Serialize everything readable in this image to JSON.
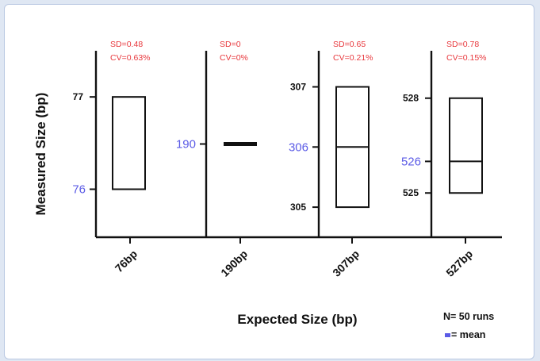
{
  "chart_data": {
    "type": "box",
    "title": "",
    "xlabel": "Expected Size (bp)",
    "ylabel": "Measured Size (bp)",
    "note": "N= 50 runs",
    "legend": [
      {
        "label": "= mean",
        "color": "#5b5be6"
      }
    ],
    "colors": {
      "stats": "#e8383d",
      "mean_label": "#5b5be6",
      "axis": "#111111"
    },
    "panels": [
      {
        "category": "76bp",
        "sd_label": "SD=0.48",
        "cv_label": "CV=0.63%",
        "ylim": [
          75.48,
          77.5
        ],
        "ticks": [
          {
            "value": 77,
            "label": "77",
            "style": "black"
          },
          {
            "value": 76,
            "label": "76",
            "style": "mean"
          }
        ],
        "box": {
          "low": 76.0,
          "high": 77.0,
          "mean": 76.0
        }
      },
      {
        "category": "190bp",
        "sd_label": "SD=0",
        "cv_label": "CV=0%",
        "ylim": [
          188,
          192
        ],
        "ticks": [
          {
            "value": 190,
            "label": "190",
            "style": "mean"
          }
        ],
        "box": {
          "low": 190.0,
          "high": 190.0,
          "mean": 190.0
        }
      },
      {
        "category": "307bp",
        "sd_label": "SD=0.65",
        "cv_label": "CV=0.21%",
        "ylim": [
          304.5,
          307.6
        ],
        "ticks": [
          {
            "value": 307,
            "label": "307",
            "style": "black"
          },
          {
            "value": 306,
            "label": "306",
            "style": "mean"
          },
          {
            "value": 305,
            "label": "305",
            "style": "black"
          }
        ],
        "box": {
          "low": 305.0,
          "high": 307.0,
          "mean": 306.0
        }
      },
      {
        "category": "527bp",
        "sd_label": "SD=0.78",
        "cv_label": "CV=0.15%",
        "ylim": [
          523.6,
          529.5
        ],
        "ticks": [
          {
            "value": 528,
            "label": "528",
            "style": "black"
          },
          {
            "value": 526,
            "label": "526",
            "style": "mean"
          },
          {
            "value": 525,
            "label": "525",
            "style": "black"
          }
        ],
        "box": {
          "low": 525.0,
          "high": 528.0,
          "mean": 526.0
        }
      }
    ]
  }
}
